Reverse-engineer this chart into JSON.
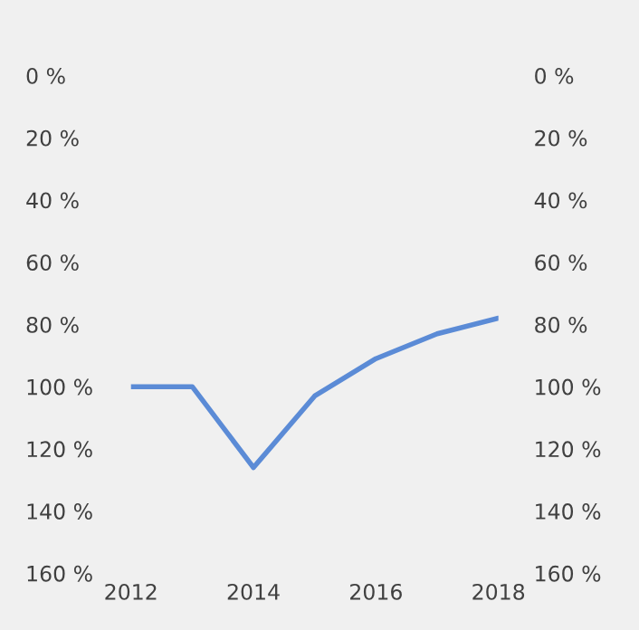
{
  "chart_data": {
    "type": "line",
    "x": [
      2012,
      2013,
      2014,
      2015,
      2016,
      2017,
      2018
    ],
    "series": [
      {
        "color": "#5b8bd6",
        "values": [
          100,
          100,
          126,
          103,
          91,
          83,
          78
        ]
      }
    ],
    "xlim": [
      2012,
      2018
    ],
    "xticks": [
      2012,
      2014,
      2016,
      2018
    ],
    "ylim": [
      160,
      0
    ],
    "yticks": [
      {
        "value": 0,
        "label": "0 %"
      },
      {
        "value": 20,
        "label": "20 %"
      },
      {
        "value": 40,
        "label": "40 %"
      },
      {
        "value": 60,
        "label": "60 %"
      },
      {
        "value": 80,
        "label": "80 %"
      },
      {
        "value": 100,
        "label": "100 %"
      },
      {
        "value": 120,
        "label": "120 %"
      },
      {
        "value": 140,
        "label": "140 %"
      },
      {
        "value": 160,
        "label": "160 %"
      }
    ],
    "y2lim": [
      160,
      0
    ],
    "y2ticks": [
      {
        "value": 0,
        "label": "0 %"
      },
      {
        "value": 20,
        "label": "20 %"
      },
      {
        "value": 40,
        "label": "40 %"
      },
      {
        "value": 60,
        "label": "60 %"
      },
      {
        "value": 80,
        "label": "80 %"
      },
      {
        "value": 100,
        "label": "100 %"
      },
      {
        "value": 120,
        "label": "120 %"
      },
      {
        "value": 140,
        "label": "140 %"
      },
      {
        "value": 160,
        "label": "160 %"
      }
    ],
    "grid": false,
    "legend": false,
    "marker": "none",
    "line_style": "solid"
  }
}
